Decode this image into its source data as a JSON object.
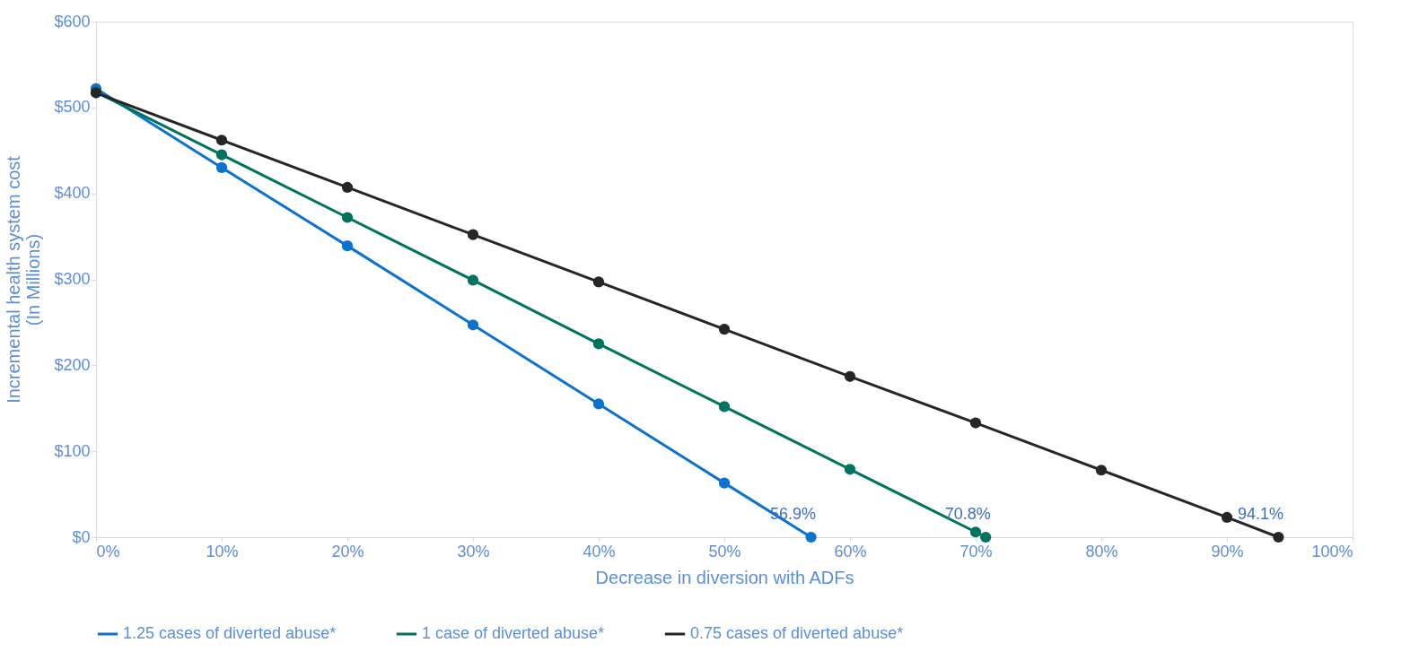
{
  "chart_data": {
    "type": "line",
    "xlabel": "Decrease in diversion with ADFs",
    "ylabel": "Incremental health system cost\n(In Millions)",
    "xlim": [
      0,
      100
    ],
    "ylim": [
      0,
      600
    ],
    "xticks": [
      {
        "value": 0,
        "label": "0%"
      },
      {
        "value": 10,
        "label": "10%"
      },
      {
        "value": 20,
        "label": "20%"
      },
      {
        "value": 30,
        "label": "30%"
      },
      {
        "value": 40,
        "label": "40%"
      },
      {
        "value": 50,
        "label": "50%"
      },
      {
        "value": 60,
        "label": "60%"
      },
      {
        "value": 70,
        "label": "70%"
      },
      {
        "value": 80,
        "label": "80%"
      },
      {
        "value": 90,
        "label": "90%"
      },
      {
        "value": 100,
        "label": "100%"
      }
    ],
    "yticks": [
      {
        "value": 0,
        "label": "$0"
      },
      {
        "value": 100,
        "label": "$100"
      },
      {
        "value": 200,
        "label": "$200"
      },
      {
        "value": 300,
        "label": "$300"
      },
      {
        "value": 400,
        "label": "$400"
      },
      {
        "value": 500,
        "label": "$500"
      },
      {
        "value": 600,
        "label": "$600"
      }
    ],
    "series": [
      {
        "name": "1.25 cases of diverted abuse*",
        "color": "#0b72d0",
        "x": [
          0,
          10,
          20,
          30,
          40,
          50,
          56.9
        ],
        "values": [
          522,
          430,
          339,
          247,
          155,
          63,
          0
        ]
      },
      {
        "name": "1 case of diverted abuse*",
        "color": "#00735f",
        "x": [
          0,
          10,
          20,
          30,
          40,
          50,
          60,
          70,
          70.8
        ],
        "values": [
          518,
          445,
          372,
          299,
          225,
          152,
          79,
          6,
          0
        ]
      },
      {
        "name": "0.75 cases of diverted abuse*",
        "color": "#262626",
        "x": [
          0,
          10,
          20,
          30,
          40,
          50,
          60,
          70,
          80,
          90,
          94.1
        ],
        "values": [
          517,
          462,
          407,
          352,
          297,
          242,
          187,
          133,
          78,
          23,
          0
        ]
      }
    ],
    "annotations": [
      {
        "text": "56.9%",
        "x": 56.9,
        "y": 0
      },
      {
        "text": "70.8%",
        "x": 70.8,
        "y": 0
      },
      {
        "text": "94.1%",
        "x": 94.1,
        "y": 0
      }
    ],
    "marker": "circle",
    "line_style": "solid",
    "grid": false,
    "legend": "bottom"
  }
}
